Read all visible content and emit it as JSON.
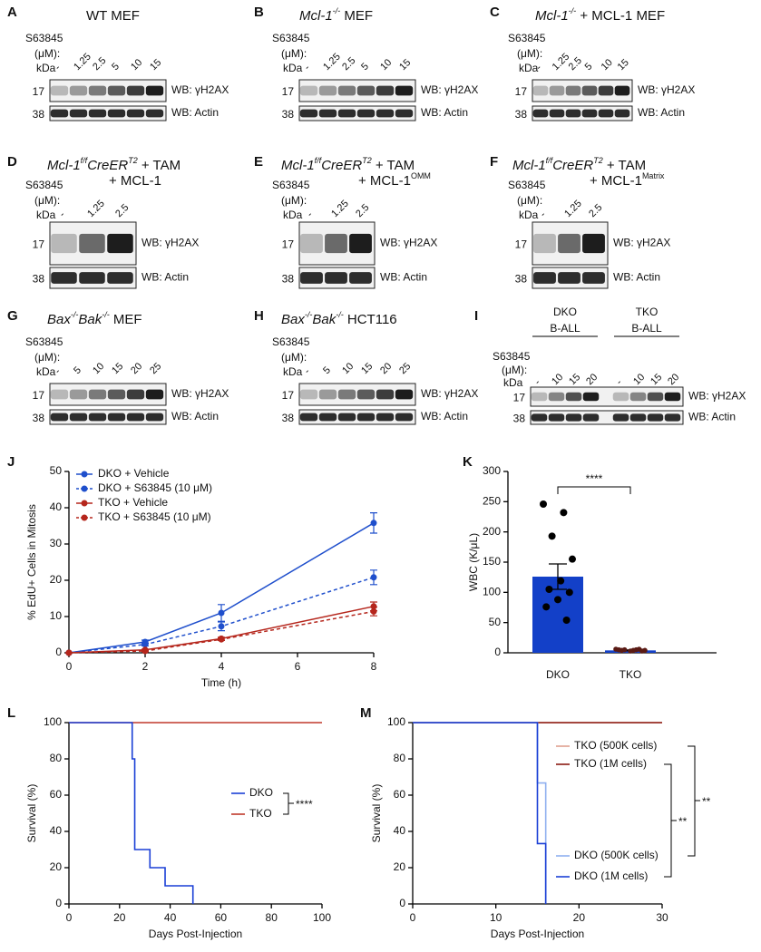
{
  "blot_labels": {
    "drug": "S63845",
    "unit": "(μM):",
    "kda": "kDa",
    "mw_h2ax": "17",
    "mw_actin": "38",
    "wb_h2ax": "WB: γH2AX",
    "wb_actin": "WB: Actin"
  },
  "blots": [
    {
      "letter": "A",
      "title": [
        [
          {
            "text": "WT MEF",
            "style": "plain"
          }
        ]
      ],
      "lanes": [
        "-",
        "1.25",
        "2.5",
        "5",
        "10",
        "15"
      ]
    },
    {
      "letter": "B",
      "title": [
        [
          {
            "text": "Mcl-1",
            "style": "italic"
          },
          {
            "text": "-/-",
            "style": "sup-italic"
          },
          {
            "text": " MEF",
            "style": "plain"
          }
        ]
      ],
      "lanes": [
        "-",
        "1.25",
        "2.5",
        "5",
        "10",
        "15"
      ]
    },
    {
      "letter": "C",
      "title": [
        [
          {
            "text": "Mcl-1",
            "style": "italic"
          },
          {
            "text": "-/-",
            "style": "sup-italic"
          },
          {
            "text": " + MCL-1 MEF",
            "style": "plain"
          }
        ]
      ],
      "lanes": [
        "-",
        "1.25",
        "2.5",
        "5",
        "10",
        "15"
      ]
    },
    {
      "letter": "D",
      "title": [
        [
          {
            "text": "Mcl-1",
            "style": "italic"
          },
          {
            "text": "f/f",
            "style": "sup-italic"
          },
          {
            "text": "CreER",
            "style": "italic"
          },
          {
            "text": "T2",
            "style": "sup-italic"
          },
          {
            "text": " + TAM",
            "style": "plain"
          }
        ],
        [
          {
            "text": "+ MCL-1",
            "style": "plain"
          }
        ]
      ],
      "lanes": [
        "-",
        "1.25",
        "2.5"
      ]
    },
    {
      "letter": "E",
      "title": [
        [
          {
            "text": "Mcl-1",
            "style": "italic"
          },
          {
            "text": "f/f",
            "style": "sup-italic"
          },
          {
            "text": "CreER",
            "style": "italic"
          },
          {
            "text": "T2",
            "style": "sup-italic"
          },
          {
            "text": " + TAM",
            "style": "plain"
          }
        ],
        [
          {
            "text": "+ MCL-1",
            "style": "plain"
          },
          {
            "text": "OMM",
            "style": "sup"
          }
        ]
      ],
      "lanes": [
        "-",
        "1.25",
        "2.5"
      ]
    },
    {
      "letter": "F",
      "title": [
        [
          {
            "text": "Mcl-1",
            "style": "italic"
          },
          {
            "text": "f/f",
            "style": "sup-italic"
          },
          {
            "text": "CreER",
            "style": "italic"
          },
          {
            "text": "T2",
            "style": "sup-italic"
          },
          {
            "text": " + TAM",
            "style": "plain"
          }
        ],
        [
          {
            "text": "+ MCL-1",
            "style": "plain"
          },
          {
            "text": "Matrix",
            "style": "sup"
          }
        ]
      ],
      "lanes": [
        "-",
        "1.25",
        "2.5"
      ]
    },
    {
      "letter": "G",
      "title": [
        [
          {
            "text": "Bax",
            "style": "italic"
          },
          {
            "text": "-/-",
            "style": "sup-italic"
          },
          {
            "text": "Bak",
            "style": "italic"
          },
          {
            "text": "-/-",
            "style": "sup-italic"
          },
          {
            "text": " MEF",
            "style": "plain"
          }
        ]
      ],
      "lanes": [
        "-",
        "5",
        "10",
        "15",
        "20",
        "25"
      ]
    },
    {
      "letter": "H",
      "title": [
        [
          {
            "text": "Bax",
            "style": "italic"
          },
          {
            "text": "-/-",
            "style": "sup-italic"
          },
          {
            "text": "Bak",
            "style": "italic"
          },
          {
            "text": "-/-",
            "style": "sup-italic"
          },
          {
            "text": " HCT116",
            "style": "plain"
          }
        ]
      ],
      "lanes": [
        "-",
        "5",
        "10",
        "15",
        "20",
        "25"
      ]
    },
    {
      "letter": "I",
      "groups": [
        {
          "label": [
            "DKO",
            "B-ALL"
          ],
          "lanes": [
            "-",
            "10",
            "15",
            "20"
          ]
        },
        {
          "label": [
            "TKO",
            "B-ALL"
          ],
          "lanes": [
            "-",
            "10",
            "15",
            "20"
          ]
        }
      ]
    }
  ],
  "chart_data": [
    {
      "type": "line",
      "letter": "J",
      "y_label": "% EdU+ Cells in Mitosis",
      "x_label": "Time (h)",
      "x": [
        0,
        2,
        4,
        8
      ],
      "xlim": [
        0,
        8
      ],
      "xticks": [
        0,
        2,
        4,
        6,
        8
      ],
      "ylim": [
        0,
        50
      ],
      "yticks": [
        0,
        10,
        20,
        30,
        40,
        50
      ],
      "legend": "upper-left",
      "series": [
        {
          "name": "DKO + Vehicle",
          "color": "#1f4fcc",
          "dash": false,
          "values": [
            0,
            3,
            11,
            35.8
          ],
          "errors": [
            0,
            0.5,
            2.3,
            2.8
          ]
        },
        {
          "name": "DKO + S63845 (10 μM)",
          "color": "#1f4fcc",
          "dash": true,
          "values": [
            0,
            2.3,
            7.3,
            20.8
          ],
          "errors": [
            0,
            0.4,
            1.2,
            2
          ]
        },
        {
          "name": "TKO + Vehicle",
          "color": "#b5261c",
          "dash": false,
          "values": [
            0,
            0.8,
            3.9,
            12.8
          ],
          "errors": [
            0,
            0.2,
            0.4,
            1.2
          ]
        },
        {
          "name": "TKO + S63845 (10 μM)",
          "color": "#b5261c",
          "dash": true,
          "values": [
            0,
            0.5,
            3.7,
            11.4
          ],
          "errors": [
            0,
            0.2,
            0.3,
            1.2
          ]
        }
      ]
    },
    {
      "type": "bar",
      "letter": "K",
      "y_label": "WBC (K/μL)",
      "categories": [
        "DKO",
        "TKO"
      ],
      "values": [
        126,
        4
      ],
      "errors": [
        21,
        0.6
      ],
      "color": "#1340c8",
      "ylim": [
        0,
        300
      ],
      "yticks": [
        0,
        50,
        100,
        150,
        200,
        250,
        300
      ],
      "annotation": "****",
      "points": [
        [
          246,
          232,
          193,
          155,
          119,
          105,
          100,
          88,
          76,
          54
        ],
        [
          6,
          5,
          5,
          4,
          4,
          4,
          3,
          3,
          5,
          6
        ]
      ],
      "point_colors": [
        "#000000",
        "#5a1a14"
      ]
    },
    {
      "type": "step",
      "letter": "L",
      "y_label": "Survival (%)",
      "x_label": "Days Post-Injection",
      "xlim": [
        0,
        100
      ],
      "xticks": [
        0,
        20,
        40,
        60,
        80,
        100
      ],
      "ylim": [
        0,
        100
      ],
      "yticks": [
        0,
        20,
        40,
        60,
        80,
        100
      ],
      "legend": "right",
      "annotation": "****",
      "series": [
        {
          "name": "DKO",
          "color": "#1a3fd6",
          "x": [
            0,
            25,
            26,
            32,
            38,
            49
          ],
          "values": [
            100,
            80,
            30,
            20,
            10,
            0
          ]
        },
        {
          "name": "TKO",
          "color": "#c0392b",
          "x": [
            0,
            100
          ],
          "values": [
            100,
            100
          ]
        }
      ]
    },
    {
      "type": "step",
      "letter": "M",
      "y_label": "Survival (%)",
      "x_label": "Days Post-Injection",
      "xlim": [
        0,
        30
      ],
      "xticks": [
        0,
        10,
        20,
        30
      ],
      "ylim": [
        0,
        100
      ],
      "yticks": [
        0,
        20,
        40,
        60,
        80,
        100
      ],
      "legend": "right",
      "annotations": [
        "**",
        "**"
      ],
      "series": [
        {
          "name": "TKO (500K cells)",
          "color": "#e0a090",
          "x": [
            0,
            30
          ],
          "values": [
            100,
            100
          ]
        },
        {
          "name": "TKO (1M cells)",
          "color": "#8b1a12",
          "x": [
            0,
            30
          ],
          "values": [
            100,
            100
          ]
        },
        {
          "name": "DKO (500K cells)",
          "color": "#8fb0f0",
          "x": [
            0,
            15,
            16
          ],
          "values": [
            100,
            66.7,
            0
          ]
        },
        {
          "name": "DKO (1M cells)",
          "color": "#1a3fd6",
          "x": [
            0,
            15,
            16
          ],
          "values": [
            100,
            33.3,
            0
          ]
        }
      ]
    }
  ]
}
